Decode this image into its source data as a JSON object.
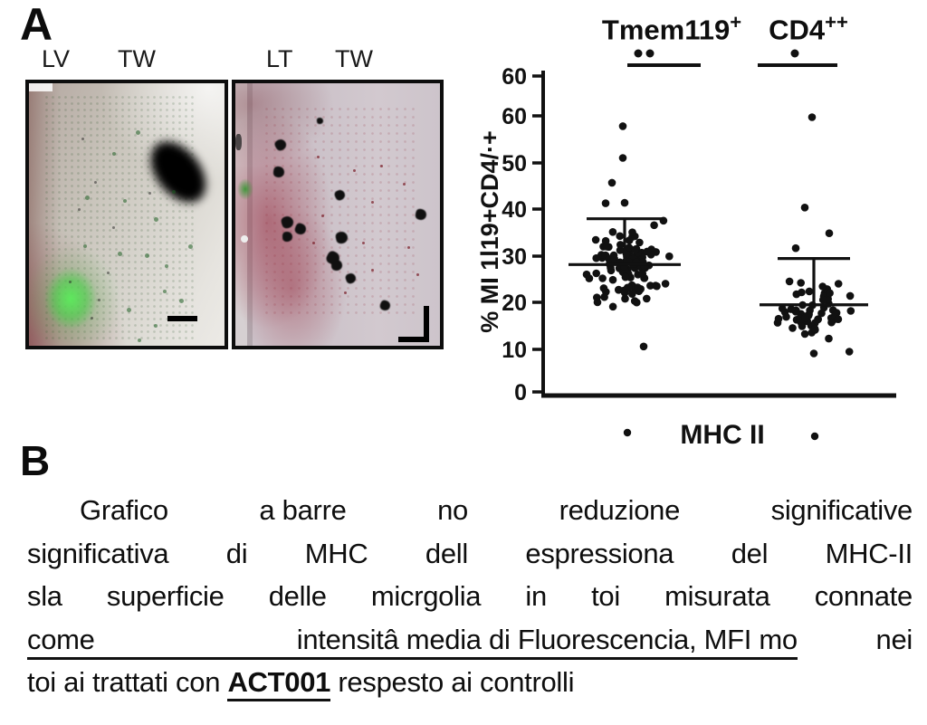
{
  "panel_a": {
    "label": "A",
    "image_labels": [
      "LV",
      "TW",
      "LT",
      "TW"
    ],
    "colors": {
      "fluorescence_green": "#3ecb45",
      "stain_red": "#8c2230",
      "ink": "#111111"
    }
  },
  "chart_data": {
    "type": "scatter",
    "title_groups": [
      {
        "base": "Tmem119",
        "sup": "+"
      },
      {
        "base": "CD4",
        "sup": "++"
      }
    ],
    "ylabel": "% MI 1l19+CD4/·+",
    "ytick_labels": [
      "60",
      "60",
      "50",
      "40",
      "30",
      "20",
      "10",
      "0"
    ],
    "ylim": [
      0,
      65
    ],
    "xlabel": "MHC II",
    "grid": false,
    "legend_position": "none",
    "groups": [
      {
        "name": "Tmem119+",
        "n_points": 118,
        "mean": 27.8,
        "error_top": 37.6,
        "cluster": {
          "mean": 27.5,
          "sd": 4.2,
          "min": 18.8,
          "max": 37.2
        },
        "outlier_values": [
          57.4,
          50.6,
          45.3,
          40.9,
          41.0,
          10.3
        ],
        "sig_dots": 2
      },
      {
        "name": "CD4++",
        "n_points": 65,
        "mean": 19.2,
        "error_top": 29.1,
        "cluster": {
          "mean": 16.8,
          "sd": 3.4,
          "min": 9.2,
          "max": 24.2
        },
        "outlier_values": [
          59.3,
          40.0,
          34.5,
          31.3,
          8.8
        ],
        "sig_dots": 1
      }
    ]
  },
  "panel_b": {
    "label": "B",
    "lines": [
      {
        "type": "justify",
        "indent": true,
        "tokens": [
          "Grafico",
          "a barre",
          "no",
          "reduzione",
          "significative"
        ]
      },
      {
        "type": "justify",
        "tokens": [
          "significativa",
          "di",
          "MHC",
          "dell",
          "espressiona",
          "del",
          "MHC-II"
        ]
      },
      {
        "type": "justify",
        "tokens": [
          "sla",
          "superficie",
          "delle",
          "micrgolia",
          "in",
          "toi",
          "misurata",
          "connate"
        ]
      },
      {
        "type": "underline",
        "underline_tokens": [
          "come",
          "intensitâ media di Fluorescencia, MFI mo"
        ],
        "tail": "nei"
      },
      {
        "type": "rich",
        "prefix": "toi ai trattati con ",
        "emphasis": "ACT001",
        "suffix": " respesto ai controlli"
      }
    ]
  }
}
